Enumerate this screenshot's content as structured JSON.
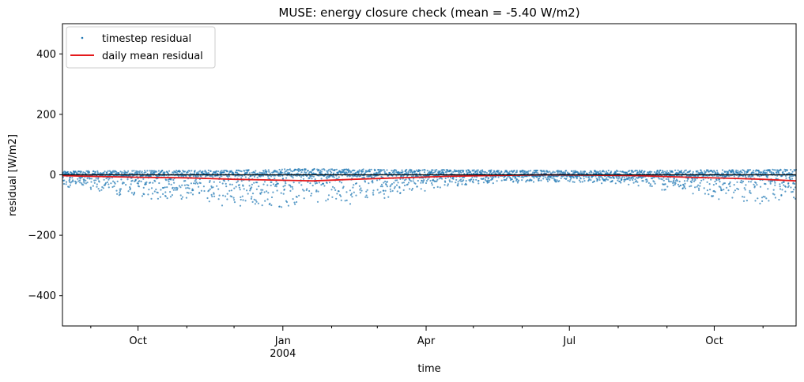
{
  "chart_data": {
    "type": "scatter",
    "title": "MUSE: energy closure check (mean = -5.40 W/m2)",
    "xlabel": "time",
    "ylabel": "residual [W/m2]",
    "xlim": [
      "2003-08-14",
      "2004-11-22"
    ],
    "ylim": [
      -500,
      500
    ],
    "yticks": [
      -400,
      -200,
      0,
      200,
      400
    ],
    "ytick_labels": [
      "−400",
      "−200",
      "0",
      "200",
      "400"
    ],
    "xticks_major": [
      {
        "date": "2003-10-01",
        "label": "Oct",
        "sublabel": ""
      },
      {
        "date": "2004-01-01",
        "label": "Jan",
        "sublabel": "2004"
      },
      {
        "date": "2004-04-01",
        "label": "Apr",
        "sublabel": ""
      },
      {
        "date": "2004-07-01",
        "label": "Jul",
        "sublabel": ""
      },
      {
        "date": "2004-10-01",
        "label": "Oct",
        "sublabel": ""
      }
    ],
    "xticks_minor": [
      "2003-09-01",
      "2003-11-01",
      "2003-12-01",
      "2004-02-01",
      "2004-03-01",
      "2004-05-01",
      "2004-06-01",
      "2004-08-01",
      "2004-09-01",
      "2004-11-01"
    ],
    "hline": 0,
    "grid": false,
    "legend_position": "top-left",
    "series": [
      {
        "name": "timestep residual",
        "kind": "points",
        "color": "#1f77b4",
        "envelope_upper": [
          [
            "2003-08-14",
            12
          ],
          [
            "2003-10-01",
            14
          ],
          [
            "2003-12-01",
            15
          ],
          [
            "2004-01-15",
            20
          ],
          [
            "2004-03-01",
            18
          ],
          [
            "2004-05-01",
            16
          ],
          [
            "2004-07-01",
            14
          ],
          [
            "2004-09-01",
            15
          ],
          [
            "2004-11-22",
            18
          ]
        ],
        "envelope_lower": [
          [
            "2003-08-14",
            -40
          ],
          [
            "2003-09-15",
            -70
          ],
          [
            "2003-10-20",
            -90
          ],
          [
            "2003-12-15",
            -110
          ],
          [
            "2004-01-15",
            -110
          ],
          [
            "2004-02-20",
            -95
          ],
          [
            "2004-03-20",
            -65
          ],
          [
            "2004-05-01",
            -30
          ],
          [
            "2004-07-01",
            -25
          ],
          [
            "2004-08-15",
            -40
          ],
          [
            "2004-09-20",
            -70
          ],
          [
            "2004-10-20",
            -95
          ],
          [
            "2004-11-22",
            -110
          ]
        ]
      },
      {
        "name": "daily mean residual",
        "kind": "line",
        "color": "#e41a1c",
        "values": [
          [
            "2003-08-14",
            -3
          ],
          [
            "2003-09-01",
            -5
          ],
          [
            "2003-10-01",
            -8
          ],
          [
            "2003-11-01",
            -10
          ],
          [
            "2003-12-01",
            -15
          ],
          [
            "2004-01-01",
            -18
          ],
          [
            "2004-01-20",
            -20
          ],
          [
            "2004-02-15",
            -15
          ],
          [
            "2004-03-15",
            -10
          ],
          [
            "2004-04-15",
            -5
          ],
          [
            "2004-05-15",
            -2
          ],
          [
            "2004-06-15",
            0
          ],
          [
            "2004-07-15",
            -1
          ],
          [
            "2004-08-15",
            -3
          ],
          [
            "2004-09-15",
            -8
          ],
          [
            "2004-10-15",
            -12
          ],
          [
            "2004-11-01",
            -15
          ],
          [
            "2004-11-22",
            -20
          ]
        ]
      }
    ]
  }
}
